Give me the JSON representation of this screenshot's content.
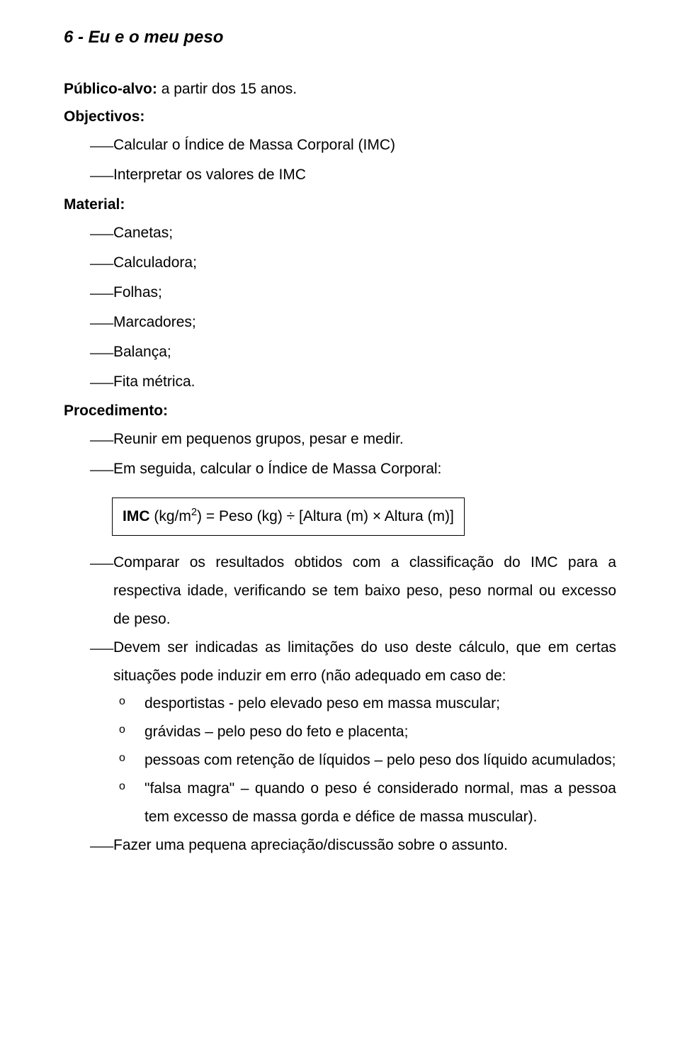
{
  "title": "6 - Eu e o meu peso",
  "publico_label": "Público-alvo:",
  "publico_value": " a partir dos 15 anos.",
  "objectivos_label": "Objectivos:",
  "objectivos": [
    "Calcular o Índice de Massa Corporal (IMC)",
    "Interpretar os valores de IMC"
  ],
  "material_label": "Material:",
  "material": [
    "Canetas;",
    "Calculadora;",
    "Folhas;",
    "Marcadores;",
    "Balança;",
    "Fita métrica."
  ],
  "procedimento_label": "Procedimento:",
  "procedimento_pre": [
    "Reunir em pequenos grupos, pesar e medir.",
    "Em seguida, calcular o Índice de Massa Corporal:"
  ],
  "formula": {
    "lhs": "IMC",
    "units": " (kg/m",
    "exp": "2",
    "eq": ") = Peso (kg) ÷ [Altura (m) × Altura (m)]"
  },
  "procedimento_post": [
    "Comparar os resultados obtidos com a classificação do IMC para a respectiva idade, verificando se tem baixo peso, peso normal ou excesso de peso.",
    "Devem ser indicadas as limitações do uso deste cálculo, que em certas situações pode induzir em erro (não adequado em caso de:"
  ],
  "sub_items": [
    "desportistas - pelo elevado peso em massa muscular;",
    "grávidas – pelo peso do feto e placenta;",
    "pessoas com retenção de líquidos – pelo peso dos líquido acumulados;",
    "\"falsa magra\" – quando o peso é considerado normal, mas a pessoa tem excesso de massa gorda e défice de massa muscular)."
  ],
  "procedimento_final": [
    "Fazer uma pequena apreciação/discussão sobre o assunto."
  ],
  "dash_glyph": "⸺",
  "circ_glyph": "o"
}
